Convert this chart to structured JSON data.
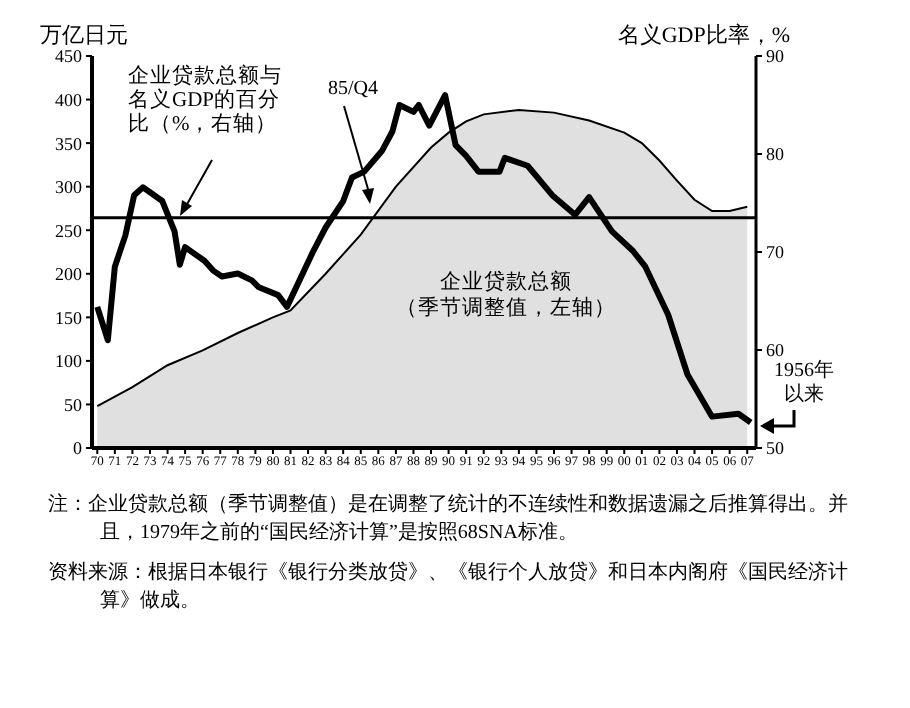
{
  "chart_data": {
    "type": "line",
    "ylabel": "万亿日元",
    "y2label": "名义GDP比率，%",
    "xlim": [
      1969.7,
      2007.5
    ],
    "xticks": [
      {
        "value": 1970,
        "label": "70"
      },
      {
        "value": 1971,
        "label": "71"
      },
      {
        "value": 1972,
        "label": "72"
      },
      {
        "value": 1973,
        "label": "73"
      },
      {
        "value": 1974,
        "label": "74"
      },
      {
        "value": 1975,
        "label": "75"
      },
      {
        "value": 1976,
        "label": "76"
      },
      {
        "value": 1977,
        "label": "77"
      },
      {
        "value": 1978,
        "label": "78"
      },
      {
        "value": 1979,
        "label": "79"
      },
      {
        "value": 1980,
        "label": "80"
      },
      {
        "value": 1981,
        "label": "81"
      },
      {
        "value": 1982,
        "label": "82"
      },
      {
        "value": 1983,
        "label": "83"
      },
      {
        "value": 1984,
        "label": "84"
      },
      {
        "value": 1985,
        "label": "85"
      },
      {
        "value": 1986,
        "label": "86"
      },
      {
        "value": 1987,
        "label": "87"
      },
      {
        "value": 1988,
        "label": "88"
      },
      {
        "value": 1989,
        "label": "89"
      },
      {
        "value": 1990,
        "label": "90"
      },
      {
        "value": 1991,
        "label": "91"
      },
      {
        "value": 1992,
        "label": "92"
      },
      {
        "value": 1993,
        "label": "93"
      },
      {
        "value": 1994,
        "label": "94"
      },
      {
        "value": 1995,
        "label": "95"
      },
      {
        "value": 1996,
        "label": "96"
      },
      {
        "value": 1997,
        "label": "97"
      },
      {
        "value": 1998,
        "label": "98"
      },
      {
        "value": 1999,
        "label": "99"
      },
      {
        "value": 2000,
        "label": "00"
      },
      {
        "value": 2001,
        "label": "01"
      },
      {
        "value": 2002,
        "label": "02"
      },
      {
        "value": 2003,
        "label": "03"
      },
      {
        "value": 2004,
        "label": "04"
      },
      {
        "value": 2005,
        "label": "05"
      },
      {
        "value": 2006,
        "label": "06"
      },
      {
        "value": 2007,
        "label": "07"
      }
    ],
    "ylim": [
      0,
      450
    ],
    "yticks": [
      0,
      50,
      100,
      150,
      200,
      250,
      300,
      350,
      400,
      450
    ],
    "y2lim": [
      50,
      90
    ],
    "y2ticks": [
      50,
      60,
      70,
      80,
      90
    ],
    "series": [
      {
        "type": "area",
        "name": "企业贷款总额（季节调整值，左轴）",
        "color": "#e0e0e0",
        "x": [
          1970,
          1972,
          1974,
          1976,
          1978,
          1980,
          1981,
          1983,
          1985,
          1987,
          1989,
          1990,
          1991,
          1992,
          1994,
          1996,
          1998,
          2000,
          2001,
          2002,
          2003,
          2004,
          2005,
          2006,
          2007
        ],
        "values": [
          48,
          70,
          95,
          112,
          132,
          150,
          158,
          200,
          245,
          300,
          345,
          362,
          375,
          383,
          388,
          385,
          376,
          362,
          350,
          330,
          307,
          285,
          272,
          272,
          277
        ]
      },
      {
        "type": "line",
        "axis": "y2",
        "name": "企业贷款总额与名义GDP的百分比（%，右轴）",
        "color": "#000000",
        "x": [
          1970,
          1970.6,
          1971,
          1971.6,
          1972.1,
          1972.6,
          1973.7,
          1974.4,
          1974.7,
          1975,
          1976.1,
          1976.6,
          1977.1,
          1978,
          1978.8,
          1979.2,
          1980.3,
          1980.8,
          1982.3,
          1983,
          1984,
          1984.5,
          1985.2,
          1986.2,
          1986.8,
          1987.2,
          1988,
          1988.3,
          1988.9,
          1989.8,
          1990.4,
          1991,
          1991.7,
          1992.9,
          1993.2,
          1994.5,
          1995.9,
          1997.2,
          1998,
          1999.3,
          2000.5,
          2001.2,
          2002.5,
          2003.6,
          2005,
          2006.5,
          2007.2
        ],
        "values": [
          64.4,
          61,
          68.5,
          71.7,
          75.8,
          76.6,
          75.2,
          72.1,
          68.7,
          70.5,
          69.1,
          68.1,
          67.5,
          67.8,
          67.1,
          66.4,
          65.6,
          64.4,
          70.1,
          72.5,
          75.2,
          77.6,
          78.2,
          80.3,
          82.3,
          85,
          84.3,
          85,
          82.9,
          86,
          80.9,
          79.8,
          78.2,
          78.2,
          79.6,
          78.8,
          75.8,
          73.8,
          75.6,
          72.1,
          70.1,
          68.5,
          63.6,
          57.5,
          53.2,
          53.5,
          52.6
        ]
      }
    ],
    "ref_lines": [
      {
        "axis": "y2",
        "value": 73.5,
        "color": "#000000"
      }
    ],
    "grid": false,
    "legend": false,
    "annotations": [
      "85/Q4",
      "1956年以来",
      "注：企业贷款总额（季节调整值）是在调整了统计的不连续性和数据遗漏之后推算得出。并且，1979年之前的“国民经济计算”是按照68SNA标准。",
      "资料来源：根据日本银行《银行分类放贷》、《银行个人放贷》和日本内阁府《国民经济计算》做成。"
    ]
  }
}
